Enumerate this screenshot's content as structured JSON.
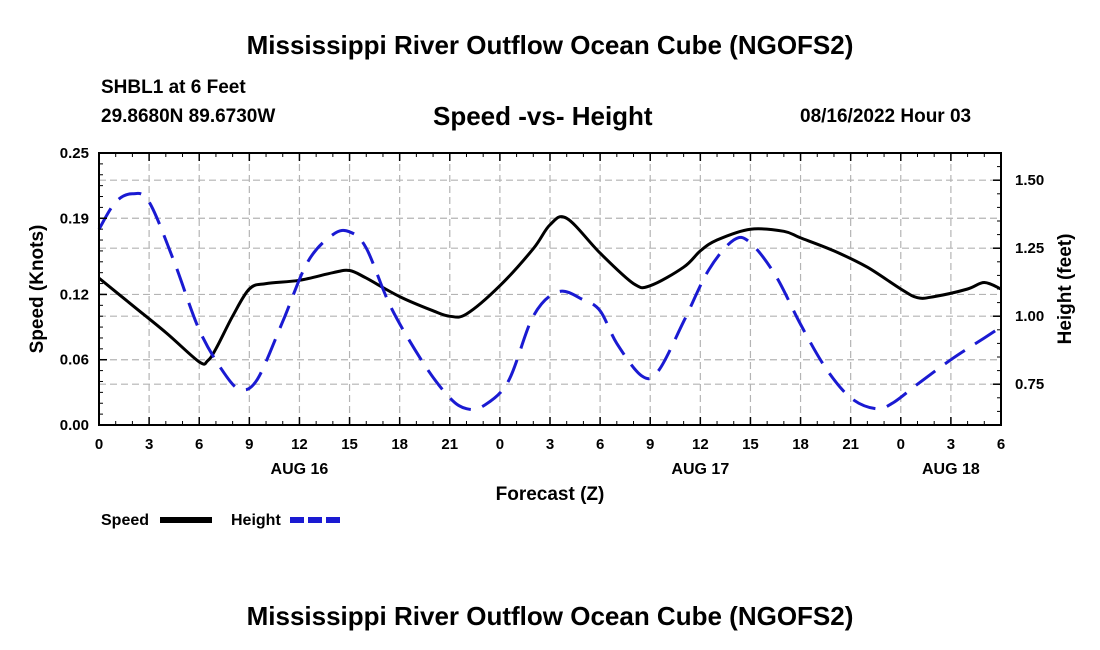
{
  "header": {
    "title": "Mississippi River Outflow Ocean Cube (NGOFS2)",
    "station": "SHBL1 at 6 Feet",
    "coords": "29.8680N  89.6730W",
    "chart_title": "Speed -vs- Height",
    "date": "08/16/2022 Hour 03"
  },
  "footer": {
    "title": "Mississippi River Outflow Ocean Cube (NGOFS2)"
  },
  "chart_data": {
    "type": "line",
    "title": "Speed -vs- Height",
    "xlabel": "Forecast (Z)",
    "ylabel": "Speed (Knots)",
    "y2label": "Height (feet)",
    "xlim": [
      0,
      54
    ],
    "ylim": [
      0,
      0.25
    ],
    "y2lim": [
      0.6,
      1.6
    ],
    "grid": true,
    "x_ticks": [
      0,
      3,
      6,
      9,
      12,
      15,
      18,
      21,
      24,
      27,
      30,
      33,
      36,
      39,
      42,
      45,
      48,
      51,
      54
    ],
    "x_tick_labels": [
      "0",
      "3",
      "6",
      "9",
      "12",
      "15",
      "18",
      "21",
      "0",
      "3",
      "6",
      "9",
      "12",
      "15",
      "18",
      "21",
      "0",
      "3",
      "6"
    ],
    "date_labels": [
      {
        "x": 12,
        "label": "AUG 16"
      },
      {
        "x": 36,
        "label": "AUG 17"
      },
      {
        "x": 51,
        "label": "AUG 18"
      }
    ],
    "y_ticks": [
      0.0,
      0.06,
      0.12,
      0.19,
      0.25
    ],
    "y_tick_labels": [
      "0.00",
      "0.06",
      "0.12",
      "0.19",
      "0.25"
    ],
    "y2_ticks": [
      0.75,
      1.0,
      1.25,
      1.5
    ],
    "y2_tick_labels": [
      "0.75",
      "1.00",
      "1.25",
      "1.50"
    ],
    "series": [
      {
        "name": "Speed",
        "axis": "left",
        "color": "#000000",
        "dash": "solid",
        "x": [
          0,
          2,
          4,
          6,
          6.5,
          7,
          8,
          9,
          10,
          12,
          14,
          15,
          16,
          18,
          20,
          21,
          22,
          24,
          26,
          27,
          28,
          30,
          32,
          33,
          35,
          36,
          37,
          39,
          41,
          42,
          44,
          46,
          48,
          49,
          50,
          52,
          53,
          54
        ],
        "y": [
          0.135,
          0.11,
          0.085,
          0.058,
          0.059,
          0.07,
          0.1,
          0.125,
          0.13,
          0.133,
          0.14,
          0.142,
          0.135,
          0.118,
          0.105,
          0.1,
          0.102,
          0.128,
          0.162,
          0.184,
          0.19,
          0.158,
          0.13,
          0.128,
          0.145,
          0.16,
          0.17,
          0.18,
          0.178,
          0.172,
          0.16,
          0.145,
          0.125,
          0.117,
          0.118,
          0.125,
          0.131,
          0.125
        ]
      },
      {
        "name": "Height",
        "axis": "right",
        "color": "#1a1ad2",
        "dash": "dashed",
        "x": [
          0,
          1,
          2,
          3,
          4.5,
          6,
          7.5,
          8.5,
          9.5,
          11,
          12.5,
          14,
          15,
          16,
          17.5,
          19.5,
          21,
          22,
          23,
          24.5,
          26,
          27.5,
          29,
          30,
          31,
          32.5,
          33.5,
          35,
          36.5,
          38,
          39,
          40.5,
          42,
          43.5,
          45,
          46.5,
          47.5,
          49,
          51,
          53,
          54
        ],
        "y": [
          1.32,
          1.42,
          1.45,
          1.42,
          1.2,
          0.95,
          0.79,
          0.73,
          0.77,
          0.98,
          1.2,
          1.3,
          1.31,
          1.25,
          1.03,
          0.82,
          0.7,
          0.66,
          0.67,
          0.76,
          1.0,
          1.09,
          1.06,
          1.02,
          0.9,
          0.78,
          0.8,
          0.98,
          1.17,
          1.28,
          1.27,
          1.15,
          0.97,
          0.81,
          0.7,
          0.66,
          0.68,
          0.75,
          0.84,
          0.92,
          0.96
        ]
      }
    ],
    "legend": [
      {
        "label": "Speed",
        "color": "#000000",
        "dash": "solid"
      },
      {
        "label": "Height",
        "color": "#1a1ad2",
        "dash": "dashed"
      }
    ]
  }
}
